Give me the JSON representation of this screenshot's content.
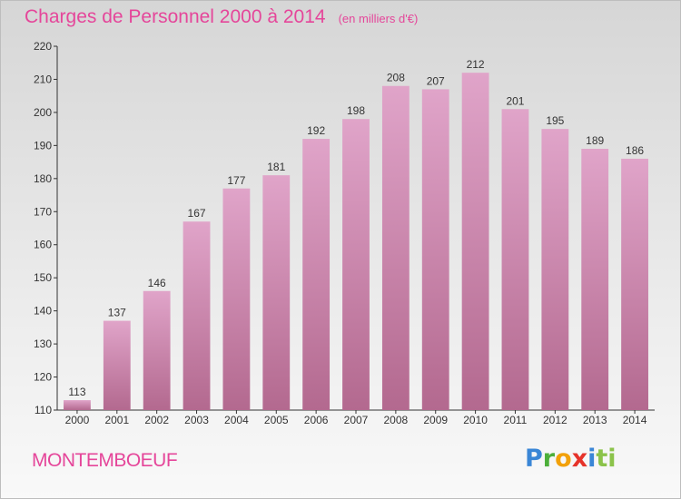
{
  "chart_data": {
    "type": "bar",
    "title": "Charges de Personnel 2000 à 2014",
    "subtitle": "(en milliers d'€)",
    "categories": [
      "2000",
      "2001",
      "2002",
      "2003",
      "2004",
      "2005",
      "2006",
      "2007",
      "2008",
      "2009",
      "2010",
      "2011",
      "2012",
      "2013",
      "2014"
    ],
    "values": [
      113,
      137,
      146,
      167,
      177,
      181,
      192,
      198,
      208,
      207,
      212,
      201,
      195,
      189,
      186
    ],
    "ylim": [
      110,
      220
    ],
    "yticks": [
      110,
      120,
      130,
      140,
      150,
      160,
      170,
      180,
      190,
      200,
      210,
      220
    ],
    "grid": false,
    "legend": "none",
    "bar_color": "#e0a4c9",
    "bar_color_dark": "#b3698f"
  },
  "footer": {
    "commune": "MONTEMBOEUF",
    "logo_letters": [
      "P",
      "r",
      "o",
      "x",
      "i",
      "ti"
    ]
  },
  "colors": {
    "title": "#e5469a"
  }
}
